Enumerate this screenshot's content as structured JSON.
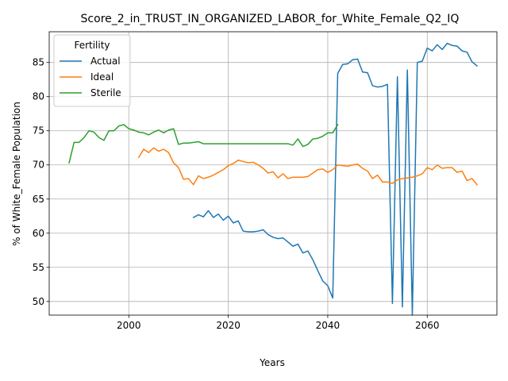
{
  "chart_data": {
    "type": "line",
    "title": "Score_2_in_TRUST_IN_ORGANIZED_LABOR_for_White_Female_Q2_IQ",
    "xlabel": "Years",
    "ylabel": "% of White_Female Population",
    "xlim": [
      1984,
      2074
    ],
    "ylim": [
      48,
      89.5
    ],
    "xticks": [
      2000,
      2020,
      2040,
      2060
    ],
    "yticks": [
      50,
      55,
      60,
      65,
      70,
      75,
      80,
      85
    ],
    "grid": true,
    "legend": {
      "title": "Fertility",
      "placement": "top-left"
    },
    "series": [
      {
        "name": "Actual",
        "color": "#1f77b4",
        "x": [
          2013,
          2014,
          2015,
          2016,
          2017,
          2018,
          2019,
          2020,
          2021,
          2022,
          2023,
          2024,
          2025,
          2026,
          2027,
          2028,
          2029,
          2030,
          2031,
          2032,
          2033,
          2034,
          2035,
          2036,
          2037,
          2038,
          2039,
          2040,
          2041,
          2042,
          2043,
          2044,
          2045,
          2046,
          2047,
          2048,
          2049,
          2050,
          2051,
          2052,
          2053,
          2054,
          2055,
          2056,
          2057,
          2058,
          2059,
          2060,
          2061,
          2062,
          2063,
          2064,
          2065,
          2066,
          2067,
          2068,
          2069,
          2070
        ],
        "y": [
          62.3,
          62.7,
          62.4,
          63.3,
          62.3,
          62.8,
          61.9,
          62.5,
          61.5,
          61.8,
          60.3,
          60.2,
          60.2,
          60.3,
          60.5,
          59.8,
          59.4,
          59.2,
          59.3,
          58.7,
          58.1,
          58.4,
          57.1,
          57.4,
          56.1,
          54.5,
          53.0,
          52.3,
          50.5,
          83.4,
          84.7,
          84.8,
          85.4,
          85.5,
          83.6,
          83.5,
          81.6,
          81.4,
          81.5,
          81.8,
          49.7,
          82.9,
          49.2,
          83.9,
          48.0,
          85.0,
          85.2,
          87.1,
          86.7,
          87.6,
          86.9,
          87.8,
          87.5,
          87.4,
          86.7,
          86.5,
          85.1,
          84.5
        ]
      },
      {
        "name": "Ideal",
        "color": "#ff7f0e",
        "x": [
          2002,
          2003,
          2004,
          2005,
          2006,
          2007,
          2008,
          2009,
          2010,
          2011,
          2012,
          2013,
          2014,
          2015,
          2016,
          2017,
          2018,
          2019,
          2020,
          2021,
          2022,
          2023,
          2024,
          2025,
          2026,
          2027,
          2028,
          2029,
          2030,
          2031,
          2032,
          2033,
          2034,
          2035,
          2036,
          2037,
          2038,
          2039,
          2040,
          2041,
          2042,
          2043,
          2044,
          2045,
          2046,
          2047,
          2048,
          2049,
          2050,
          2051,
          2052,
          2053,
          2054,
          2055,
          2056,
          2057,
          2058,
          2059,
          2060,
          2061,
          2062,
          2063,
          2064,
          2065,
          2066,
          2067,
          2068,
          2069,
          2070
        ],
        "y": [
          71.1,
          72.3,
          71.8,
          72.5,
          72.0,
          72.3,
          71.8,
          70.3,
          69.6,
          67.9,
          68.0,
          67.1,
          68.4,
          68.0,
          68.2,
          68.5,
          68.9,
          69.3,
          69.9,
          70.2,
          70.7,
          70.5,
          70.3,
          70.4,
          70.0,
          69.5,
          68.8,
          69.0,
          68.1,
          68.7,
          68.0,
          68.2,
          68.2,
          68.2,
          68.3,
          68.8,
          69.3,
          69.4,
          68.9,
          69.3,
          70.0,
          69.9,
          69.8,
          70.0,
          70.1,
          69.5,
          69.1,
          68.0,
          68.5,
          67.5,
          67.5,
          67.3,
          67.8,
          68.0,
          68.1,
          68.2,
          68.4,
          68.7,
          69.6,
          69.3,
          70.0,
          69.5,
          69.6,
          69.6,
          68.9,
          69.1,
          67.7,
          68.0,
          67.1
        ]
      },
      {
        "name": "Sterile",
        "color": "#2ca02c",
        "x": [
          1988,
          1989,
          1990,
          1991,
          1992,
          1993,
          1994,
          1995,
          1996,
          1997,
          1998,
          1999,
          2000,
          2001,
          2002,
          2003,
          2004,
          2005,
          2006,
          2007,
          2008,
          2009,
          2010,
          2011,
          2012,
          2013,
          2014,
          2015,
          2016,
          2017,
          2018,
          2019,
          2020,
          2021,
          2022,
          2023,
          2024,
          2025,
          2026,
          2027,
          2028,
          2029,
          2030,
          2031,
          2032,
          2033,
          2034,
          2035,
          2036,
          2037,
          2038,
          2039,
          2040,
          2041,
          2042
        ],
        "y": [
          70.3,
          73.3,
          73.3,
          74.0,
          75.0,
          74.8,
          74.0,
          73.6,
          75.0,
          75.0,
          75.7,
          75.9,
          75.3,
          75.1,
          74.8,
          74.7,
          74.4,
          74.8,
          75.1,
          74.7,
          75.1,
          75.3,
          73.0,
          73.2,
          73.2,
          73.3,
          73.4,
          73.1,
          73.1,
          73.1,
          73.1,
          73.1,
          73.1,
          73.1,
          73.1,
          73.1,
          73.1,
          73.1,
          73.1,
          73.1,
          73.1,
          73.1,
          73.1,
          73.1,
          73.1,
          72.9,
          73.8,
          72.7,
          73.0,
          73.8,
          73.9,
          74.2,
          74.7,
          74.7,
          75.9
        ]
      }
    ]
  }
}
